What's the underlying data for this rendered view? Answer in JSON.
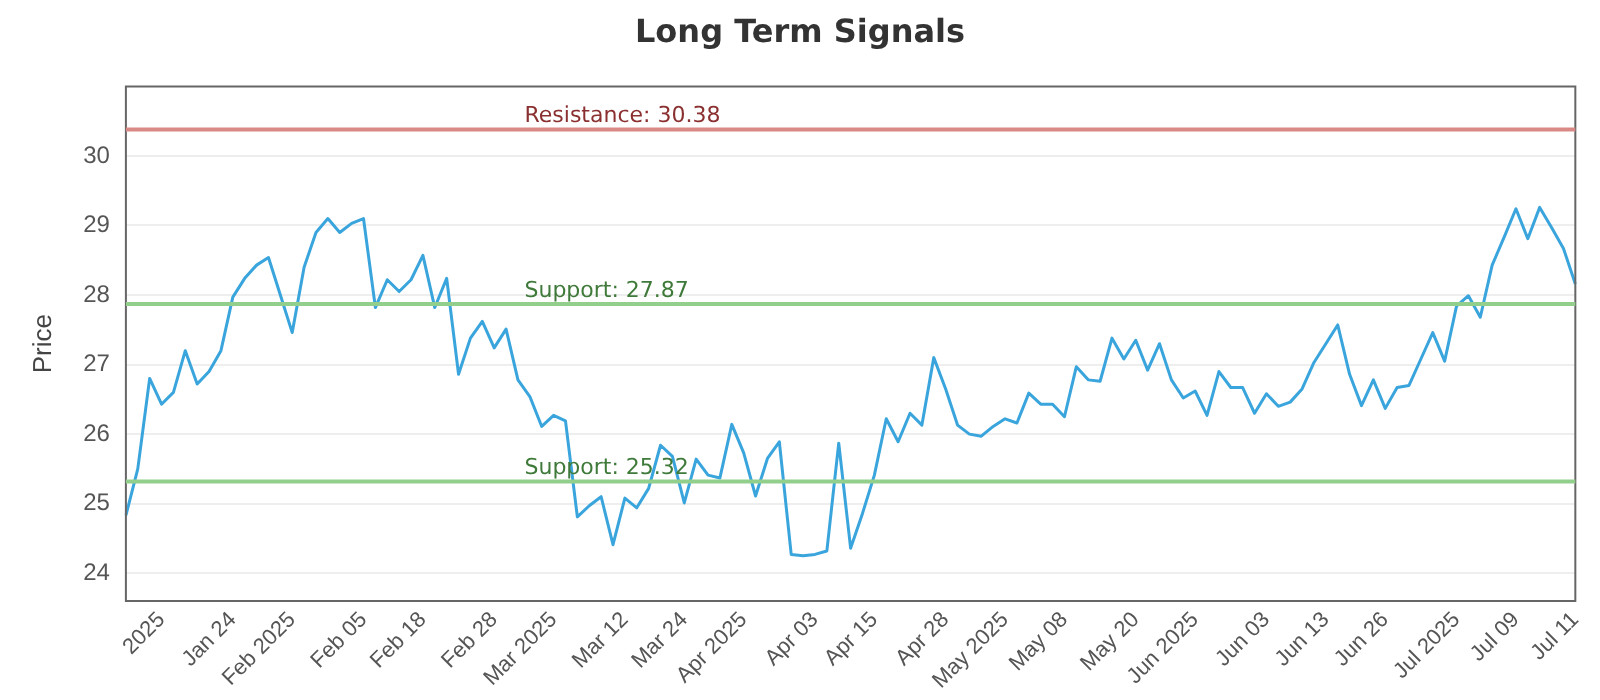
{
  "chart_data": {
    "type": "line",
    "title": "Long Term Signals",
    "ylabel": "Price",
    "categories": [
      null,
      null,
      null,
      "2025",
      null,
      null,
      null,
      null,
      null,
      "Jan 24",
      null,
      null,
      null,
      null,
      "Feb 2025",
      null,
      null,
      null,
      null,
      null,
      "Feb 05",
      null,
      null,
      null,
      null,
      "Feb 18",
      null,
      null,
      null,
      null,
      null,
      "Feb 28",
      null,
      null,
      null,
      null,
      "Mar 2025",
      null,
      null,
      null,
      null,
      null,
      "Mar 12",
      null,
      null,
      null,
      null,
      "Mar 24",
      null,
      null,
      null,
      null,
      "Apr 2025",
      null,
      null,
      null,
      null,
      null,
      "Apr 03",
      null,
      null,
      null,
      null,
      "Apr 15",
      null,
      null,
      null,
      null,
      null,
      "Apr 28",
      null,
      null,
      null,
      null,
      "May 2025",
      null,
      null,
      null,
      null,
      "May 08",
      null,
      null,
      null,
      null,
      null,
      "May 20",
      null,
      null,
      null,
      null,
      "Jun 2025",
      null,
      null,
      null,
      null,
      null,
      "Jun 03",
      null,
      null,
      null,
      null,
      "Jun 13",
      null,
      null,
      null,
      null,
      "Jun 26",
      null,
      null,
      null,
      null,
      null,
      "Jul 2025",
      null,
      null,
      null,
      null,
      "Jul 09",
      null,
      null,
      null,
      null,
      "Jul 11"
    ],
    "series": [
      {
        "color": "#3aa5dc",
        "values": [
          24.83,
          25.5,
          26.8,
          26.43,
          26.6,
          27.2,
          26.72,
          26.9,
          27.2,
          27.97,
          28.24,
          28.43,
          28.54,
          28.0,
          27.46,
          28.4,
          28.9,
          29.1,
          28.9,
          29.03,
          29.1,
          27.82,
          28.22,
          28.05,
          28.22,
          28.57,
          27.82,
          28.24,
          26.86,
          27.38,
          27.62,
          27.24,
          27.51,
          26.78,
          26.54,
          26.11,
          26.27,
          26.19,
          24.81,
          24.97,
          25.1,
          24.41,
          25.08,
          24.94,
          25.22,
          25.84,
          25.68,
          25.01,
          25.64,
          25.41,
          25.37,
          26.14,
          25.73,
          25.11,
          25.65,
          25.89,
          24.27,
          24.25,
          24.27,
          24.32,
          25.87,
          24.36,
          24.86,
          25.41,
          26.22,
          25.89,
          26.3,
          26.13,
          27.1,
          26.65,
          26.13,
          26.0,
          25.97,
          26.11,
          26.22,
          26.16,
          26.59,
          26.43,
          26.43,
          26.25,
          26.97,
          26.78,
          26.76,
          27.38,
          27.08,
          27.35,
          26.92,
          27.3,
          26.78,
          26.52,
          26.62,
          26.27,
          26.9,
          26.67,
          26.67,
          26.3,
          26.58,
          26.4,
          26.46,
          26.65,
          27.03,
          27.3,
          27.57,
          26.86,
          26.41,
          26.78,
          26.37,
          26.67,
          26.7,
          27.08,
          27.46,
          27.05,
          27.84,
          27.99,
          27.68,
          28.43,
          28.83,
          29.24,
          28.81,
          29.26,
          28.97,
          28.67,
          28.16
        ]
      }
    ],
    "ylim": [
      23.6,
      31
    ],
    "yticks": [
      24,
      25,
      26,
      27,
      28,
      29,
      30
    ],
    "grid": "y",
    "legend": false,
    "marker": "none",
    "line_style": "solid",
    "ref_lines": [
      {
        "axis": "y",
        "value": 30.38,
        "label": "Resistance: 30.38",
        "color": "#d98a86"
      },
      {
        "axis": "y",
        "value": 27.87,
        "label": "Support: 27.87",
        "color": "#92cf8c"
      },
      {
        "axis": "y",
        "value": 25.32,
        "label": "Support: 25.32",
        "color": "#92cf8c"
      }
    ]
  }
}
